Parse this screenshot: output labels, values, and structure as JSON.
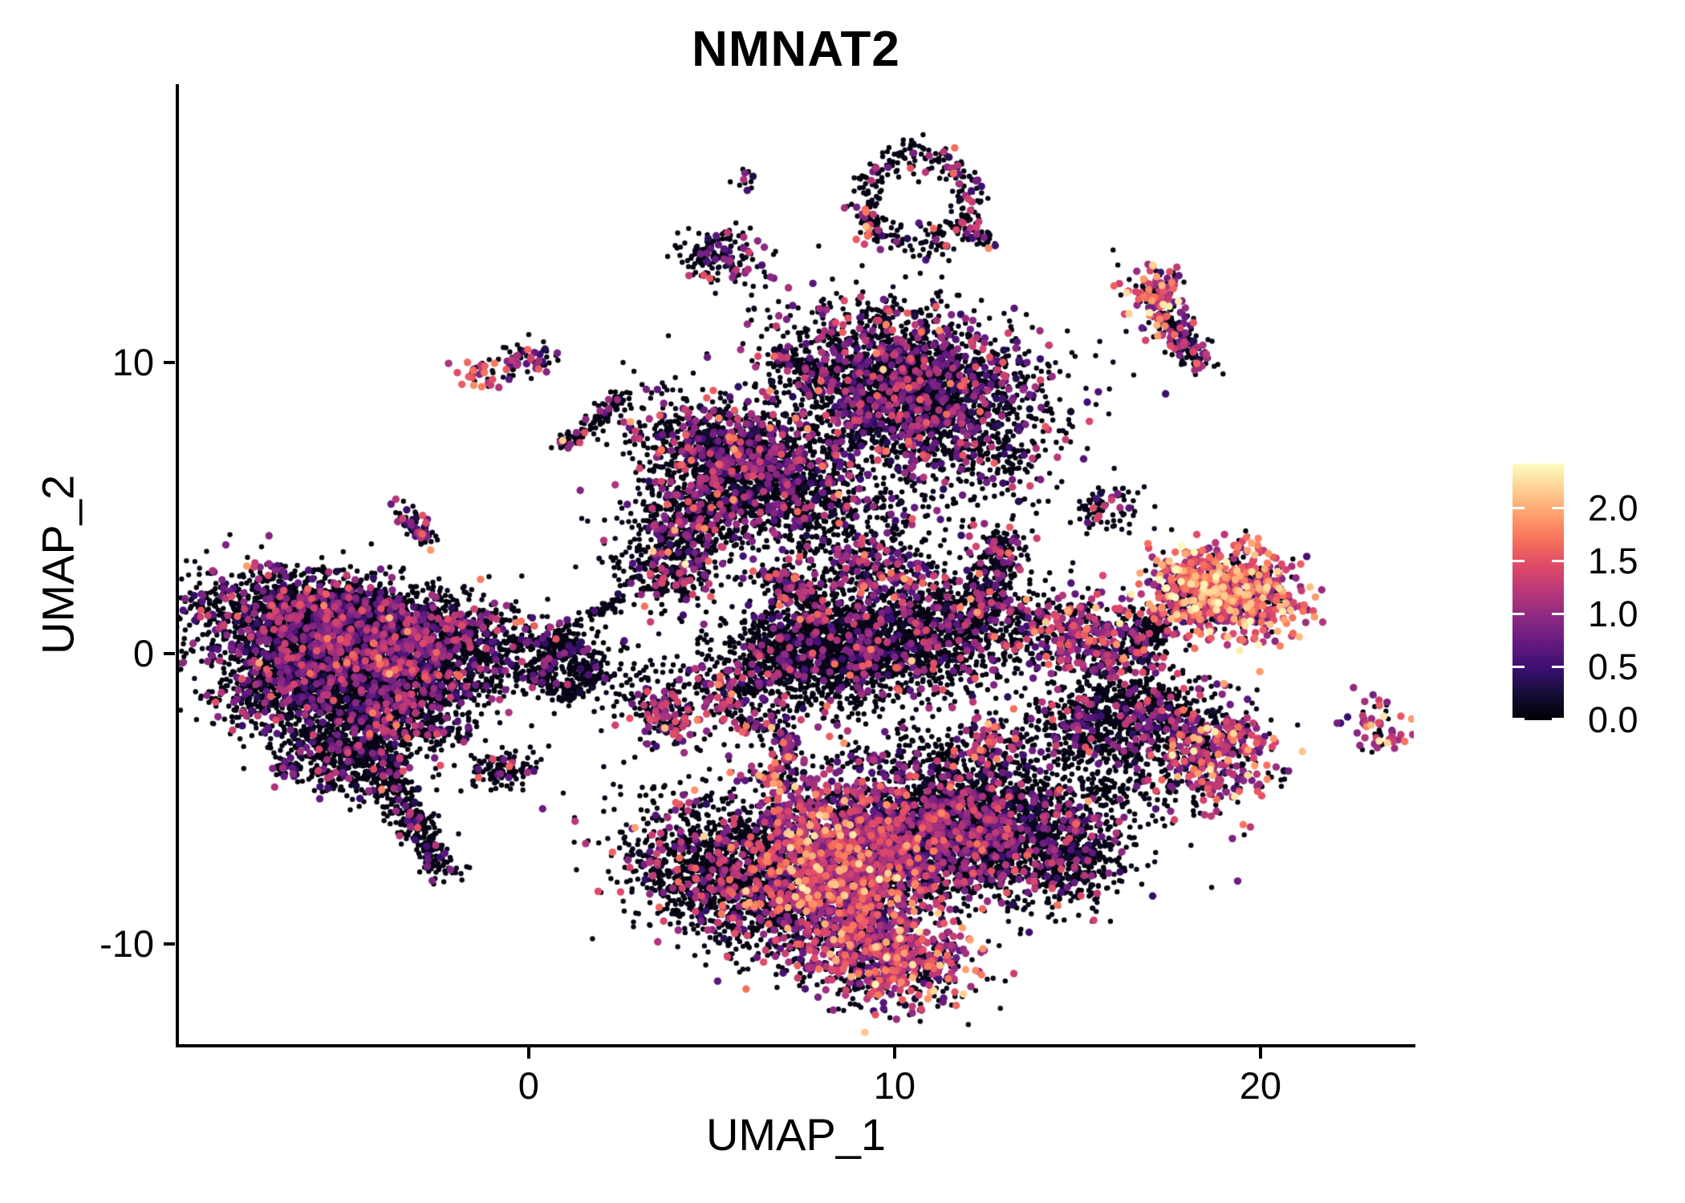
{
  "chart_data": {
    "type": "scatter",
    "subtype": "umap-feature-plot",
    "title": "NMNAT2",
    "xlabel": "UMAP_1",
    "ylabel": "UMAP_2",
    "xlim": [
      -9.58,
      24.19
    ],
    "ylim": [
      -13.44,
      19.57
    ],
    "grid": false,
    "x_ticks": [
      {
        "v": 0,
        "label": "0"
      },
      {
        "v": 10,
        "label": "10"
      },
      {
        "v": 20,
        "label": "20"
      }
    ],
    "y_ticks": [
      {
        "v": -10,
        "label": "-10"
      },
      {
        "v": 0,
        "label": "0"
      },
      {
        "v": 10,
        "label": "10"
      }
    ],
    "colorbar": {
      "title": "",
      "min": 0,
      "max": 2.42,
      "ticks": [
        {
          "v": 0.0,
          "label": "0.0"
        },
        {
          "v": 0.5,
          "label": "0.5"
        },
        {
          "v": 1.0,
          "label": "1.0"
        },
        {
          "v": 1.5,
          "label": "1.5"
        },
        {
          "v": 2.0,
          "label": "2.0"
        }
      ],
      "colormap_name": "magma",
      "stops": [
        "#000004",
        "#140e36",
        "#3b0f70",
        "#641a80",
        "#8c2981",
        "#b73779",
        "#de4968",
        "#f7705c",
        "#fe9f6d",
        "#fecf92",
        "#fcfdbf"
      ]
    },
    "point_radius": {
      "black": 3.2,
      "colored": 4.7
    },
    "seed": 7,
    "clusters": [
      {
        "nm": "left-top-band",
        "sh": "g",
        "cx": -5.2,
        "cy": 1.35,
        "sx": 1.9,
        "sy": 0.7,
        "rot": -10,
        "n": 1700,
        "p0": 0.8,
        "m": 0.85
      },
      {
        "nm": "left-mid-band",
        "sh": "g",
        "cx": -4.3,
        "cy": 0.15,
        "sx": 2.25,
        "sy": 0.85,
        "rot": -5,
        "n": 2300,
        "p0": 0.8,
        "m": 0.85
      },
      {
        "nm": "left-low-left",
        "sh": "g",
        "cx": -5.9,
        "cy": -1.0,
        "sx": 1.3,
        "sy": 0.8,
        "rot": 15,
        "n": 1100,
        "p0": 0.82,
        "m": 0.8
      },
      {
        "nm": "left-low-mid",
        "sh": "g",
        "cx": -3.7,
        "cy": -1.7,
        "sx": 1.1,
        "sy": 0.8,
        "rot": -20,
        "n": 900,
        "p0": 0.82,
        "m": 0.8
      },
      {
        "nm": "left-south-lobe",
        "sh": "g",
        "cx": -5.1,
        "cy": -3.6,
        "sx": 0.95,
        "sy": 0.6,
        "rot": -30,
        "n": 450,
        "p0": 0.85,
        "m": 0.8
      },
      {
        "nm": "left-tail",
        "sh": "l",
        "x1": -4.5,
        "y1": -2.8,
        "x2": -2.35,
        "y2": -7.5,
        "th": 0.3,
        "n": 420,
        "p0": 0.9,
        "m": 0.8
      },
      {
        "nm": "left-tiny-island",
        "sh": "g",
        "cx": -6.65,
        "cy": -4.05,
        "sx": 0.25,
        "sy": 0.16,
        "rot": 0,
        "n": 26,
        "p0": 0.6,
        "m": 0.8
      },
      {
        "nm": "island-south-center",
        "sh": "g",
        "cx": -0.7,
        "cy": -4.05,
        "sx": 0.5,
        "sy": 0.3,
        "rot": 10,
        "n": 110,
        "p0": 0.85,
        "m": 0.8
      },
      {
        "nm": "ring-blob",
        "sh": "r",
        "cx": 1.05,
        "cy": -0.55,
        "rx": 0.62,
        "ry": 0.72,
        "th": 0.28,
        "n": 260,
        "p0": 0.92,
        "m": 0.8
      },
      {
        "nm": "blob-above-ring",
        "sh": "g",
        "cx": 0.75,
        "cy": 0.3,
        "sx": 0.5,
        "sy": 0.3,
        "rot": 0,
        "n": 90,
        "p0": 0.9,
        "m": 0.8
      },
      {
        "nm": "scatter-left-gap",
        "sh": "g",
        "cx": -0.7,
        "cy": -0.5,
        "sx": 0.75,
        "sy": 0.55,
        "rot": 0,
        "n": 90,
        "p0": 0.96,
        "m": 0.7
      },
      {
        "nm": "bridge-up",
        "sh": "l",
        "x1": 0.55,
        "y1": 0.45,
        "x2": 2.45,
        "y2": 1.85,
        "th": 0.12,
        "n": 60,
        "p0": 0.93,
        "m": 0.8
      },
      {
        "nm": "elbow-cluster",
        "sh": "g",
        "cx": 3.85,
        "cy": 2.95,
        "sx": 0.8,
        "sy": 0.75,
        "rot": 0,
        "n": 300,
        "p0": 0.8,
        "m": 0.95,
        "h": 0.02
      },
      {
        "nm": "mini-streak",
        "sh": "l",
        "x1": 6.45,
        "y1": 2.75,
        "x2": 7.75,
        "y2": 1.95,
        "th": 0.2,
        "n": 150,
        "p0": 0.7,
        "m": 0.95
      },
      {
        "nm": "top-main-lobe",
        "sh": "g",
        "cx": 10.35,
        "cy": 9.0,
        "sx": 1.75,
        "sy": 1.35,
        "rot": -18,
        "n": 2700,
        "p0": 0.76,
        "m": 0.85,
        "h": 0.004
      },
      {
        "nm": "top-left-ext",
        "sh": "g",
        "cx": 5.9,
        "cy": 6.5,
        "sx": 1.55,
        "sy": 0.9,
        "rot": -28,
        "n": 1500,
        "p0": 0.8,
        "m": 0.85
      },
      {
        "nm": "top-lowleft-lobe",
        "sh": "g",
        "cx": 4.45,
        "cy": 4.7,
        "sx": 0.85,
        "sy": 0.75,
        "rot": 0,
        "n": 500,
        "p0": 0.82,
        "m": 0.85
      },
      {
        "nm": "top-streak",
        "sh": "l",
        "x1": 6.8,
        "y1": 10.25,
        "x2": 8.2,
        "y2": 9.6,
        "th": 0.18,
        "n": 90,
        "p0": 0.9,
        "m": 0.85
      },
      {
        "nm": "below-top-scatter",
        "sh": "g",
        "cx": 8.2,
        "cy": 4.7,
        "sx": 1.9,
        "sy": 0.8,
        "rot": -10,
        "n": 320,
        "p0": 0.92,
        "m": 0.8
      },
      {
        "nm": "purple-band",
        "sh": "g",
        "cx": 9.3,
        "cy": 2.95,
        "sx": 1.05,
        "sy": 0.5,
        "rot": -12,
        "n": 280,
        "p0": 0.68,
        "m": 0.9
      },
      {
        "nm": "top-right-scatter",
        "sh": "g",
        "cx": 13.0,
        "cy": 6.6,
        "sx": 0.65,
        "sy": 0.75,
        "rot": 0,
        "n": 90,
        "p0": 0.92,
        "m": 0.85
      },
      {
        "nm": "island-mid-top",
        "sh": "g",
        "cx": 5.2,
        "cy": 13.6,
        "sx": 0.62,
        "sy": 0.45,
        "rot": -15,
        "n": 170,
        "p0": 0.78,
        "m": 0.85
      },
      {
        "nm": "tiny-top-dots",
        "sh": "g",
        "cx": 5.95,
        "cy": 16.35,
        "sx": 0.14,
        "sy": 0.22,
        "rot": 0,
        "n": 12,
        "p0": 0.7,
        "m": 0.8
      },
      {
        "nm": "hook-ring",
        "sh": "r",
        "cx": 10.6,
        "cy": 15.6,
        "rx": 1.45,
        "ry": 1.5,
        "th": 0.3,
        "n": 300,
        "p0": 0.86,
        "m": 0.9
      },
      {
        "nm": "hook-pink-clump",
        "sh": "g",
        "cx": 9.3,
        "cy": 14.85,
        "sx": 0.18,
        "sy": 0.3,
        "rot": 0,
        "n": 20,
        "p0": 0.25,
        "m": 1.5
      },
      {
        "nm": "hook-tail",
        "sh": "l",
        "x1": 11.9,
        "y1": 14.5,
        "x2": 12.6,
        "y2": 14.25,
        "th": 0.15,
        "n": 45,
        "p0": 0.85,
        "m": 0.9
      },
      {
        "nm": "tall-island-top",
        "sh": "g",
        "cx": 17.1,
        "cy": 12.25,
        "sx": 0.5,
        "sy": 0.55,
        "rot": 0,
        "n": 130,
        "p0": 0.42,
        "m": 1.25,
        "h": 0.12
      },
      {
        "nm": "tall-island-tail",
        "sh": "l",
        "x1": 17.35,
        "y1": 11.5,
        "x2": 18.45,
        "y2": 9.95,
        "th": 0.3,
        "n": 150,
        "p0": 0.72,
        "m": 0.95
      },
      {
        "nm": "sparse-right-mid",
        "sh": "g",
        "cx": 15.8,
        "cy": 4.95,
        "sx": 0.6,
        "sy": 0.5,
        "rot": 0,
        "n": 75,
        "p0": 0.9,
        "m": 1.0
      },
      {
        "nm": "bright-main",
        "sh": "g",
        "cx": 19.05,
        "cy": 2.15,
        "sx": 1.1,
        "sy": 0.78,
        "rot": -10,
        "n": 680,
        "p0": 0.16,
        "m": 1.35,
        "h": 0.18
      },
      {
        "nm": "bright-dark-rim",
        "sh": "r",
        "cx": 19.05,
        "cy": 2.15,
        "rx": 1.35,
        "ry": 0.95,
        "th": 0.22,
        "n": 170,
        "p0": 0.93,
        "m": 0.9
      },
      {
        "nm": "bright-dark-tail",
        "sh": "l",
        "x1": 17.5,
        "y1": 1.35,
        "x2": 16.4,
        "y2": 0.15,
        "th": 0.3,
        "n": 170,
        "p0": 0.9,
        "m": 0.9
      },
      {
        "nm": "mid-right-cluster",
        "sh": "g",
        "cx": 15.3,
        "cy": 0.45,
        "sx": 1.15,
        "sy": 0.72,
        "rot": -18,
        "n": 440,
        "p0": 0.52,
        "m": 1.0,
        "h": 0.03
      },
      {
        "nm": "rm-dark-a",
        "sh": "g",
        "cx": 15.6,
        "cy": -2.0,
        "sx": 1.15,
        "sy": 0.6,
        "rot": 25,
        "n": 430,
        "p0": 0.88,
        "m": 0.85
      },
      {
        "nm": "rm-dark-b",
        "sh": "g",
        "cx": 17.2,
        "cy": -2.5,
        "sx": 0.95,
        "sy": 0.7,
        "rot": 0,
        "n": 380,
        "p0": 0.85,
        "m": 0.85
      },
      {
        "nm": "rm-colorful",
        "sh": "g",
        "cx": 18.65,
        "cy": -3.5,
        "sx": 0.8,
        "sy": 0.95,
        "rot": 10,
        "n": 400,
        "p0": 0.45,
        "m": 1.05,
        "h": 0.05
      },
      {
        "nm": "rm-chain",
        "sh": "l",
        "x1": 14.6,
        "y1": -3.1,
        "x2": 16.7,
        "y2": -3.7,
        "th": 0.2,
        "n": 90,
        "p0": 0.92,
        "m": 0.85
      },
      {
        "nm": "rm-scatter",
        "sh": "g",
        "cx": 16.1,
        "cy": -4.6,
        "sx": 1.3,
        "sy": 0.5,
        "rot": 0,
        "n": 130,
        "p0": 0.94,
        "m": 0.85
      },
      {
        "nm": "far-right-island",
        "sh": "g",
        "cx": 23.2,
        "cy": -2.5,
        "sx": 0.5,
        "sy": 0.4,
        "rot": -30,
        "n": 60,
        "p0": 0.4,
        "m": 1.2,
        "h": 0.08
      },
      {
        "nm": "bot-left-arm",
        "sh": "g",
        "cx": 5.5,
        "cy": -7.6,
        "sx": 1.6,
        "sy": 1.15,
        "rot": -35,
        "n": 1600,
        "p0": 0.88,
        "m": 1.1
      },
      {
        "nm": "bot-bright",
        "sh": "g",
        "cx": 8.3,
        "cy": -7.4,
        "sx": 1.25,
        "sy": 1.7,
        "rot": 18,
        "n": 1700,
        "p0": 0.4,
        "m": 1.1,
        "h": 0.06
      },
      {
        "nm": "bot-center",
        "sh": "g",
        "cx": 10.6,
        "cy": -6.3,
        "sx": 1.3,
        "sy": 1.15,
        "rot": 0,
        "n": 1500,
        "p0": 0.66,
        "m": 0.9
      },
      {
        "nm": "bot-right-lobe",
        "sh": "g",
        "cx": 12.9,
        "cy": -6.0,
        "sx": 1.55,
        "sy": 1.25,
        "rot": -12,
        "n": 1700,
        "p0": 0.85,
        "m": 0.85
      },
      {
        "nm": "bot-tail",
        "sh": "g",
        "cx": 9.8,
        "cy": -10.4,
        "sx": 1.15,
        "sy": 0.8,
        "rot": -18,
        "n": 750,
        "p0": 0.5,
        "m": 1.1,
        "h": 0.05
      },
      {
        "nm": "bot-right-tip",
        "sh": "g",
        "cx": 14.9,
        "cy": -7.0,
        "sx": 0.6,
        "sy": 0.85,
        "rot": 0,
        "n": 260,
        "p0": 0.9,
        "m": 0.85
      },
      {
        "nm": "bot-top-pink",
        "sh": "g",
        "cx": 12.45,
        "cy": -2.9,
        "sx": 0.45,
        "sy": 0.55,
        "rot": 0,
        "n": 70,
        "p0": 0.5,
        "m": 1.2
      },
      {
        "nm": "bot-top-scatter",
        "sh": "g",
        "cx": 11.2,
        "cy": -3.6,
        "sx": 1.4,
        "sy": 0.6,
        "rot": 0,
        "n": 170,
        "p0": 0.94,
        "m": 0.85
      },
      {
        "nm": "island-bright-small",
        "sh": "g",
        "cx": 6.75,
        "cy": -4.2,
        "sx": 0.38,
        "sy": 0.3,
        "rot": 0,
        "n": 50,
        "p0": 0.45,
        "m": 1.2,
        "h": 0.1
      },
      {
        "nm": "swoosh-main",
        "sh": "g",
        "cx": 9.55,
        "cy": 0.3,
        "sx": 2.2,
        "sy": 0.95,
        "rot": 10,
        "n": 2500,
        "p0": 0.87,
        "m": 0.85,
        "h": 0.003
      },
      {
        "nm": "swoosh-left-blob",
        "sh": "g",
        "cx": 7.6,
        "cy": 0.1,
        "sx": 0.9,
        "sy": 0.9,
        "rot": 0,
        "n": 500,
        "p0": 0.88,
        "m": 0.85
      },
      {
        "nm": "swoosh-neck",
        "sh": "l",
        "x1": 12.3,
        "y1": 1.3,
        "x2": 13.05,
        "y2": 3.6,
        "th": 0.3,
        "n": 230,
        "p0": 0.85,
        "m": 0.9
      },
      {
        "nm": "swoosh-hook",
        "sh": "g",
        "cx": 12.9,
        "cy": 3.85,
        "sx": 0.35,
        "sy": 0.25,
        "rot": 0,
        "n": 60,
        "p0": 0.72,
        "m": 1.0
      },
      {
        "nm": "streak-left-small",
        "sh": "l",
        "x1": -3.5,
        "y1": 4.95,
        "x2": -2.75,
        "y2": 3.8,
        "th": 0.18,
        "n": 75,
        "p0": 0.75,
        "m": 0.85
      },
      {
        "nm": "chain-diagonal",
        "sh": "l",
        "x1": 0.85,
        "y1": 7.1,
        "x2": 2.6,
        "y2": 8.85,
        "th": 0.14,
        "n": 110,
        "p0": 0.86,
        "m": 0.9
      },
      {
        "nm": "island-orange-small",
        "sh": "g",
        "cx": -1.3,
        "cy": 9.6,
        "sx": 0.3,
        "sy": 0.26,
        "rot": 0,
        "n": 34,
        "p0": 0.3,
        "m": 1.3,
        "h": 0.25
      },
      {
        "nm": "island-purple-small",
        "sh": "g",
        "cx": -0.1,
        "cy": 10.2,
        "sx": 0.42,
        "sy": 0.3,
        "rot": -10,
        "n": 60,
        "p0": 0.62,
        "m": 0.85
      },
      {
        "nm": "elbow-low",
        "sh": "g",
        "cx": 3.7,
        "cy": -2.2,
        "sx": 0.62,
        "sy": 0.45,
        "rot": -25,
        "n": 140,
        "p0": 0.6,
        "m": 1.0
      },
      {
        "nm": "island-mid-low",
        "sh": "g",
        "cx": 5.35,
        "cy": -1.35,
        "sx": 0.55,
        "sy": 0.5,
        "rot": 0,
        "n": 130,
        "p0": 0.75,
        "m": 1.0
      },
      {
        "nm": "piece-mid-low",
        "sh": "g",
        "cx": 6.1,
        "cy": -2.35,
        "sx": 0.45,
        "sy": 0.22,
        "rot": -15,
        "n": 60,
        "p0": 0.78,
        "m": 1.0
      },
      {
        "nm": "tiny-vert-blob",
        "sh": "g",
        "cx": 7.0,
        "cy": -3.2,
        "sx": 0.2,
        "sy": 0.42,
        "rot": 0,
        "n": 45,
        "p0": 0.7,
        "m": 0.9
      },
      {
        "nm": "scatter-low-left",
        "sh": "g",
        "cx": 2.3,
        "cy": -1.1,
        "sx": 0.8,
        "sy": 0.6,
        "rot": 0,
        "n": 70,
        "p0": 0.96,
        "m": 0.8
      }
    ]
  }
}
